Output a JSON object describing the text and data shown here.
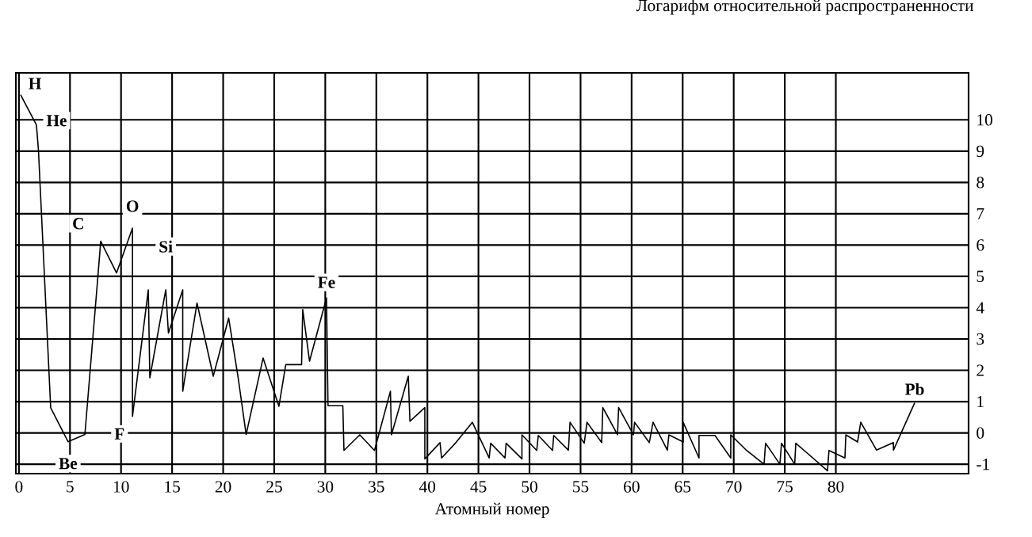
{
  "chart_data": {
    "type": "line",
    "xlabel": "Атомный номер",
    "ylabel": "Логарифм относительной распространенности",
    "color": "#000000",
    "grid": true,
    "xlim": [
      -0.3,
      93
    ],
    "xticks": [
      0,
      5,
      10,
      15,
      20,
      25,
      30,
      35,
      40,
      45,
      50,
      55,
      60,
      65,
      70,
      75,
      80
    ],
    "ylim": [
      -1.3,
      11.5
    ],
    "yticks": [
      -1,
      0,
      1,
      2,
      3,
      4,
      5,
      6,
      7,
      8,
      9,
      10
    ],
    "x": [
      0.16,
      1.71,
      1.91,
      3.11,
      4.81,
      6.46,
      7.76,
      8.01,
      9.56,
      11.12,
      11.12,
      12.67,
      12.82,
      14.38,
      14.64,
      16.04,
      16.04,
      17.44,
      19.03,
      20.54,
      21.47,
      22.25,
      23.91,
      25.46,
      26.13,
      27.68,
      27.79,
      28.46,
      30.12,
      30.27,
      31.72,
      31.83,
      33.38,
      34.82,
      36.38,
      36.48,
      38.13,
      38.29,
      39.75,
      39.75,
      41.24,
      41.39,
      42.79,
      44.4,
      46.05,
      46.2,
      47.6,
      47.71,
      49.26,
      49.26,
      50.71,
      50.86,
      52.26,
      52.37,
      53.81,
      53.97,
      55.36,
      55.63,
      57.07,
      57.18,
      58.62,
      58.73,
      60.18,
      60.29,
      61.73,
      62.1,
      63.5,
      63.65,
      65.05,
      65.05,
      66.6,
      66.6,
      68.16,
      69.71,
      69.71,
      71.26,
      72.97,
      73.12,
      74.52,
      74.68,
      75.97,
      76.08,
      79.18,
      79.33,
      80.89,
      80.98,
      82.13,
      82.44,
      83.99,
      85.64,
      85.64,
      87.72
    ],
    "values": [
      10.8,
      9.84,
      9.04,
      0.8,
      -0.28,
      -0.05,
      5.11,
      6.12,
      5.11,
      6.54,
      0.53,
      4.57,
      1.76,
      4.57,
      3.19,
      4.57,
      1.33,
      4.15,
      1.81,
      3.67,
      1.76,
      -0.05,
      2.39,
      0.85,
      2.18,
      2.18,
      3.94,
      2.29,
      4.31,
      0.87,
      0.87,
      -0.56,
      -0.06,
      -0.56,
      1.33,
      -0.06,
      1.81,
      0.37,
      0.81,
      -0.83,
      -0.31,
      -0.8,
      -0.31,
      0.34,
      -0.8,
      -0.33,
      -0.8,
      -0.33,
      -0.83,
      -0.06,
      -0.56,
      -0.08,
      -0.56,
      -0.08,
      -0.55,
      0.34,
      -0.33,
      0.34,
      -0.31,
      0.81,
      -0.06,
      0.81,
      -0.06,
      0.34,
      -0.31,
      0.34,
      -0.55,
      -0.06,
      -0.29,
      0.34,
      -0.8,
      -0.08,
      -0.08,
      -0.8,
      -0.06,
      -0.56,
      -1.0,
      -0.33,
      -1.0,
      -0.33,
      -1.0,
      -0.33,
      -1.21,
      -0.56,
      -0.8,
      -0.06,
      -0.29,
      0.34,
      -0.55,
      -0.31,
      -0.55,
      0.96
    ],
    "annotations": [
      {
        "text": "**H**",
        "x": 0.16,
        "y": 10.8
      },
      {
        "text": "**He**",
        "x": 1.71,
        "y": 9.84
      },
      {
        "text": "**C**",
        "x": 8.01,
        "y": 6.12
      },
      {
        "text": "**O**",
        "x": 11.12,
        "y": 6.54
      },
      {
        "text": "**Si**",
        "x": 14.38,
        "y": 4.57
      },
      {
        "text": "**F**",
        "x": 11.12,
        "y": 0.53
      },
      {
        "text": "**Be**",
        "x": 4.81,
        "y": -0.28
      },
      {
        "text": "**Fe**",
        "x": 30.12,
        "y": 4.31
      },
      {
        "text": "**Pb**",
        "x": 87.72,
        "y": 0.96
      }
    ]
  }
}
